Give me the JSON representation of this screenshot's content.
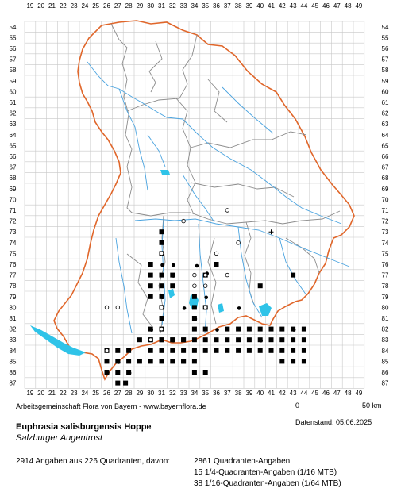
{
  "map": {
    "col_labels": [
      "19",
      "20",
      "21",
      "22",
      "23",
      "24",
      "25",
      "26",
      "27",
      "28",
      "29",
      "30",
      "31",
      "32",
      "33",
      "34",
      "35",
      "36",
      "37",
      "38",
      "39",
      "40",
      "41",
      "42",
      "43",
      "44",
      "45",
      "46",
      "47",
      "48",
      "49"
    ],
    "row_labels": [
      "54",
      "55",
      "56",
      "57",
      "58",
      "59",
      "60",
      "61",
      "62",
      "63",
      "64",
      "65",
      "66",
      "67",
      "68",
      "69",
      "70",
      "71",
      "72",
      "73",
      "74",
      "75",
      "76",
      "77",
      "78",
      "79",
      "80",
      "81",
      "82",
      "83",
      "84",
      "85",
      "86",
      "87"
    ],
    "scale": {
      "start": "0",
      "end": "50 km"
    },
    "colors": {
      "grid": "#c8c8c8",
      "border": "#e0662a",
      "districts": "#8c8c8c",
      "rivers": "#4aa3df",
      "lakes": "#2fc3e8",
      "marker": "#000000"
    }
  },
  "credit": "Arbeitsgemeinschaft Flora von Bayern - www.bayernflora.de",
  "date": "Datenstand: 05.06.2025",
  "species": {
    "name": "Euphrasia salisburgensis Hoppe",
    "common": "Salzburger Augentrost"
  },
  "stats": {
    "summary": "2914 Angaben aus 226 Quadranten, davon:",
    "line1": "2861 Quadranten-Angaben",
    "line2": "15 1/4-Quadranten-Angaben (1/16 MTB)",
    "line3": "38 1/16-Quadranten-Angaben (1/64 MTB)"
  }
}
